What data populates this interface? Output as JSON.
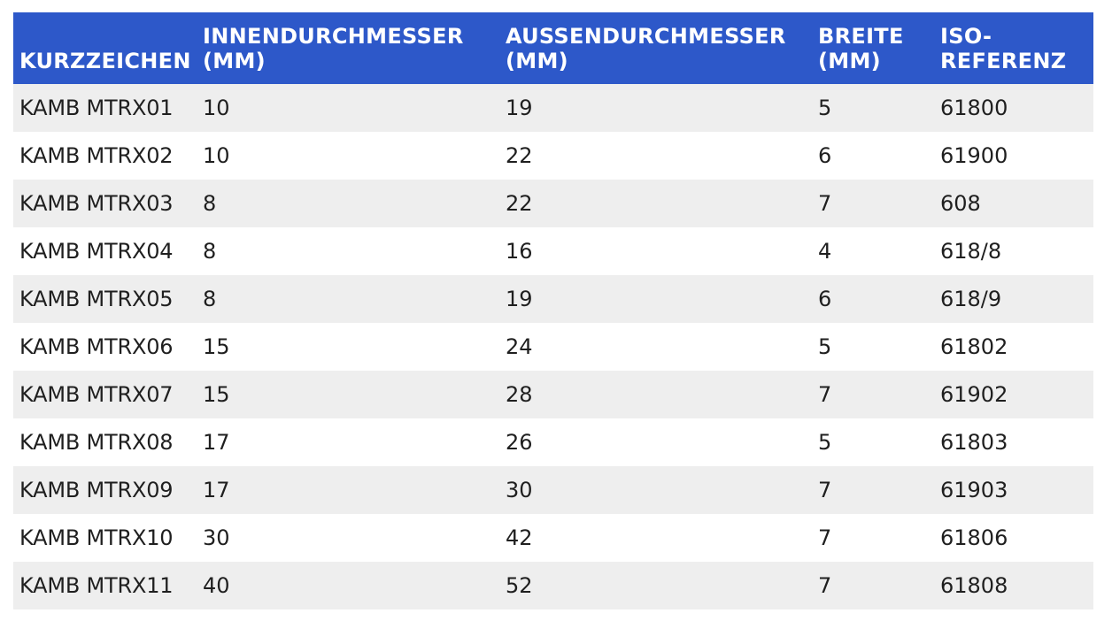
{
  "table": {
    "headers": [
      "KURZZEICHEN",
      "INNENDURCHMESSER (MM)",
      "AUSSENDURCHMESSER (MM)",
      "BREITE (MM)",
      "ISO-REFERENZ"
    ],
    "rows": [
      [
        "KAMB MTRX01",
        "10",
        "19",
        "5",
        "61800"
      ],
      [
        "KAMB MTRX02",
        "10",
        "22",
        "6",
        "61900"
      ],
      [
        "KAMB MTRX03",
        "8",
        "22",
        "7",
        "608"
      ],
      [
        "KAMB MTRX04",
        "8",
        "16",
        "4",
        "618/8"
      ],
      [
        "KAMB MTRX05",
        "8",
        "19",
        "6",
        "618/9"
      ],
      [
        "KAMB MTRX06",
        "15",
        "24",
        "5",
        "61802"
      ],
      [
        "KAMB MTRX07",
        "15",
        "28",
        "7",
        "61902"
      ],
      [
        "KAMB MTRX08",
        "17",
        "26",
        "5",
        "61803"
      ],
      [
        "KAMB MTRX09",
        "17",
        "30",
        "7",
        "61903"
      ],
      [
        "KAMB MTRX10",
        "30",
        "42",
        "7",
        "61806"
      ],
      [
        "KAMB MTRX11",
        "40",
        "52",
        "7",
        "61808"
      ]
    ]
  },
  "colors": {
    "header_bg": "#2d58c9",
    "header_text": "#ffffff",
    "row_stripe": "#eeeeee",
    "row_plain": "#ffffff",
    "body_text": "#1f1f1f"
  }
}
